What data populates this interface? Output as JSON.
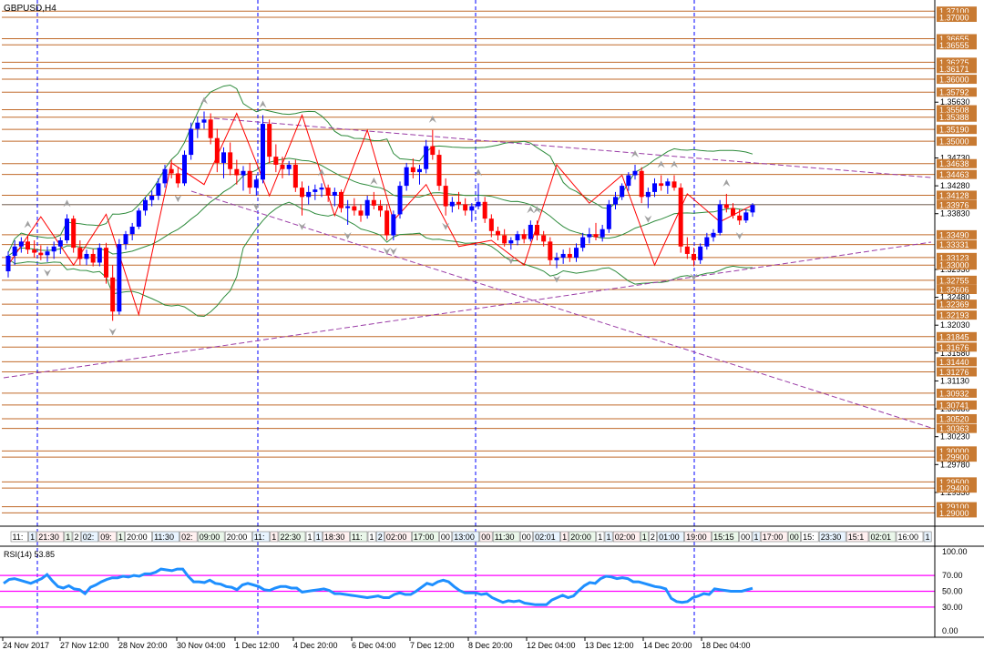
{
  "window": {
    "title": "GBPUSD,H4",
    "rsi_label": "RSI(14) 53.85"
  },
  "colors": {
    "up": "#0000ff",
    "down": "#ff0000",
    "level": "#c06a2a",
    "level_label_bg": "#c87a32",
    "grid_v": "#0000ff",
    "envelope": "#2e8b3c",
    "trend": "#9a3ca6",
    "zigzag": "#ff0000",
    "rsi": "#1e8fff",
    "rsi_level": "#ff00ff",
    "sep": "#000000"
  },
  "chart_data": {
    "type": "candlestick",
    "symbol": "GBPUSD",
    "timeframe": "H4",
    "ylim": [
      1.288,
      1.3725
    ],
    "tick_labels": [
      "1.35630",
      "1.34730",
      "1.34280",
      "1.33830",
      "1.32930",
      "1.32480",
      "1.32030",
      "1.31580",
      "1.31130",
      "1.30680",
      "1.30230",
      "1.29780",
      "1.29330"
    ],
    "levels": [
      {
        "value": 1.371,
        "label": "1.37100"
      },
      {
        "value": 1.37,
        "label": "1.37000"
      },
      {
        "value": 1.36655,
        "label": "1.36655"
      },
      {
        "value": 1.36555,
        "label": "1.36555"
      },
      {
        "value": 1.36275,
        "label": "1.36275"
      },
      {
        "value": 1.36171,
        "label": "1.36171"
      },
      {
        "value": 1.36,
        "label": "1.36000"
      },
      {
        "value": 1.35792,
        "label": "1.35792"
      },
      {
        "value": 1.35508,
        "label": "1.35508"
      },
      {
        "value": 1.35388,
        "label": "1.35388"
      },
      {
        "value": 1.3519,
        "label": "1.35190"
      },
      {
        "value": 1.35,
        "label": "1.35000"
      },
      {
        "value": 1.34638,
        "label": "1.34638"
      },
      {
        "value": 1.34463,
        "label": "1.34463"
      },
      {
        "value": 1.34128,
        "label": "1.34128"
      },
      {
        "value": 1.33976,
        "label": "1.33976"
      },
      {
        "value": 1.3349,
        "label": "1.33490"
      },
      {
        "value": 1.33331,
        "label": "1.33331"
      },
      {
        "value": 1.33123,
        "label": "1.33123"
      },
      {
        "value": 1.33,
        "label": "1.33000"
      },
      {
        "value": 1.32755,
        "label": "1.32755"
      },
      {
        "value": 1.32606,
        "label": "1.32606"
      },
      {
        "value": 1.32369,
        "label": "1.32369"
      },
      {
        "value": 1.32193,
        "label": "1.32193"
      },
      {
        "value": 1.31845,
        "label": "1.31845"
      },
      {
        "value": 1.31676,
        "label": "1.31676"
      },
      {
        "value": 1.3144,
        "label": "1.31440"
      },
      {
        "value": 1.31276,
        "label": "1.31276"
      },
      {
        "value": 1.30932,
        "label": "1.30932"
      },
      {
        "value": 1.30741,
        "label": "1.30741"
      },
      {
        "value": 1.3052,
        "label": "1.30520"
      },
      {
        "value": 1.30363,
        "label": "1.30363"
      },
      {
        "value": 1.3,
        "label": "1.30000"
      },
      {
        "value": 1.299,
        "label": "1.29900"
      },
      {
        "value": 1.295,
        "label": "1.29500"
      },
      {
        "value": 1.294,
        "label": "1.29400"
      },
      {
        "value": 1.291,
        "label": "1.29100"
      },
      {
        "value": 1.29,
        "label": "1.29000"
      }
    ],
    "current_price": 1.33976,
    "x_labels": [
      "24 Nov 2017",
      "27 Nov 12:00",
      "28 Nov 20:00",
      "30 Nov 04:00",
      "1 Dec 12:00",
      "4 Dec 20:00",
      "6 Dec 04:00",
      "7 Dec 12:00",
      "8 Dec 20:00",
      "12 Dec 04:00",
      "13 Dec 12:00",
      "14 Dec 20:00",
      "18 Dec 04:00"
    ],
    "candles": [
      {
        "o": 1.329,
        "h": 1.3322,
        "l": 1.328,
        "c": 1.3315
      },
      {
        "o": 1.3315,
        "h": 1.334,
        "l": 1.33,
        "c": 1.333
      },
      {
        "o": 1.333,
        "h": 1.3345,
        "l": 1.332,
        "c": 1.3338
      },
      {
        "o": 1.3338,
        "h": 1.3348,
        "l": 1.3318,
        "c": 1.3325
      },
      {
        "o": 1.3325,
        "h": 1.334,
        "l": 1.3312,
        "c": 1.332
      },
      {
        "o": 1.332,
        "h": 1.3332,
        "l": 1.3308,
        "c": 1.3316
      },
      {
        "o": 1.3316,
        "h": 1.333,
        "l": 1.3305,
        "c": 1.3322
      },
      {
        "o": 1.3322,
        "h": 1.3338,
        "l": 1.331,
        "c": 1.333
      },
      {
        "o": 1.333,
        "h": 1.3345,
        "l": 1.3318,
        "c": 1.334
      },
      {
        "o": 1.334,
        "h": 1.3382,
        "l": 1.3335,
        "c": 1.3375
      },
      {
        "o": 1.3375,
        "h": 1.338,
        "l": 1.332,
        "c": 1.3328
      },
      {
        "o": 1.3328,
        "h": 1.334,
        "l": 1.33,
        "c": 1.331
      },
      {
        "o": 1.331,
        "h": 1.3325,
        "l": 1.33,
        "c": 1.3318
      },
      {
        "o": 1.3318,
        "h": 1.3326,
        "l": 1.3298,
        "c": 1.3304
      },
      {
        "o": 1.3304,
        "h": 1.3335,
        "l": 1.3298,
        "c": 1.3328
      },
      {
        "o": 1.3328,
        "h": 1.3336,
        "l": 1.327,
        "c": 1.328
      },
      {
        "o": 1.328,
        "h": 1.33,
        "l": 1.321,
        "c": 1.3225
      },
      {
        "o": 1.3225,
        "h": 1.3342,
        "l": 1.322,
        "c": 1.3334
      },
      {
        "o": 1.3334,
        "h": 1.3355,
        "l": 1.3325,
        "c": 1.335
      },
      {
        "o": 1.335,
        "h": 1.3368,
        "l": 1.334,
        "c": 1.3362
      },
      {
        "o": 1.3362,
        "h": 1.3392,
        "l": 1.3358,
        "c": 1.3388
      },
      {
        "o": 1.3388,
        "h": 1.341,
        "l": 1.338,
        "c": 1.3405
      },
      {
        "o": 1.3405,
        "h": 1.342,
        "l": 1.3395,
        "c": 1.3412
      },
      {
        "o": 1.3412,
        "h": 1.344,
        "l": 1.3405,
        "c": 1.3432
      },
      {
        "o": 1.3432,
        "h": 1.3462,
        "l": 1.3425,
        "c": 1.3455
      },
      {
        "o": 1.3455,
        "h": 1.347,
        "l": 1.344,
        "c": 1.3448
      },
      {
        "o": 1.3448,
        "h": 1.3458,
        "l": 1.3425,
        "c": 1.3432
      },
      {
        "o": 1.3432,
        "h": 1.3485,
        "l": 1.3428,
        "c": 1.3478
      },
      {
        "o": 1.3478,
        "h": 1.353,
        "l": 1.347,
        "c": 1.352
      },
      {
        "o": 1.352,
        "h": 1.354,
        "l": 1.3505,
        "c": 1.353
      },
      {
        "o": 1.353,
        "h": 1.3548,
        "l": 1.352,
        "c": 1.3535
      },
      {
        "o": 1.3535,
        "h": 1.3545,
        "l": 1.3495,
        "c": 1.3505
      },
      {
        "o": 1.3505,
        "h": 1.352,
        "l": 1.345,
        "c": 1.3465
      },
      {
        "o": 1.3465,
        "h": 1.349,
        "l": 1.344,
        "c": 1.3482
      },
      {
        "o": 1.3482,
        "h": 1.3498,
        "l": 1.3445,
        "c": 1.3455
      },
      {
        "o": 1.3455,
        "h": 1.347,
        "l": 1.343,
        "c": 1.3445
      },
      {
        "o": 1.3445,
        "h": 1.346,
        "l": 1.342,
        "c": 1.3452
      },
      {
        "o": 1.3452,
        "h": 1.3465,
        "l": 1.3415,
        "c": 1.3425
      },
      {
        "o": 1.3425,
        "h": 1.3445,
        "l": 1.3412,
        "c": 1.3438
      },
      {
        "o": 1.3438,
        "h": 1.3542,
        "l": 1.3432,
        "c": 1.3528
      },
      {
        "o": 1.3528,
        "h": 1.3535,
        "l": 1.3465,
        "c": 1.3475
      },
      {
        "o": 1.3475,
        "h": 1.3495,
        "l": 1.345,
        "c": 1.3462
      },
      {
        "o": 1.3462,
        "h": 1.3475,
        "l": 1.344,
        "c": 1.3455
      },
      {
        "o": 1.3455,
        "h": 1.3468,
        "l": 1.3445,
        "c": 1.3462
      },
      {
        "o": 1.3462,
        "h": 1.347,
        "l": 1.3418,
        "c": 1.3425
      },
      {
        "o": 1.3425,
        "h": 1.3435,
        "l": 1.338,
        "c": 1.341
      },
      {
        "o": 1.341,
        "h": 1.3428,
        "l": 1.3398,
        "c": 1.3418
      },
      {
        "o": 1.3418,
        "h": 1.343,
        "l": 1.3405,
        "c": 1.3422
      },
      {
        "o": 1.3422,
        "h": 1.3432,
        "l": 1.341,
        "c": 1.3425
      },
      {
        "o": 1.3425,
        "h": 1.343,
        "l": 1.3402,
        "c": 1.3412
      },
      {
        "o": 1.3412,
        "h": 1.3425,
        "l": 1.3395,
        "c": 1.3418
      },
      {
        "o": 1.3418,
        "h": 1.3422,
        "l": 1.3385,
        "c": 1.3392
      },
      {
        "o": 1.3392,
        "h": 1.3405,
        "l": 1.3365,
        "c": 1.3395
      },
      {
        "o": 1.3395,
        "h": 1.3408,
        "l": 1.338,
        "c": 1.3388
      },
      {
        "o": 1.3388,
        "h": 1.3398,
        "l": 1.337,
        "c": 1.338
      },
      {
        "o": 1.338,
        "h": 1.3412,
        "l": 1.3375,
        "c": 1.3405
      },
      {
        "o": 1.3405,
        "h": 1.3418,
        "l": 1.339,
        "c": 1.3396
      },
      {
        "o": 1.3396,
        "h": 1.3405,
        "l": 1.3378,
        "c": 1.3388
      },
      {
        "o": 1.3388,
        "h": 1.3398,
        "l": 1.334,
        "c": 1.3348
      },
      {
        "o": 1.3348,
        "h": 1.3388,
        "l": 1.334,
        "c": 1.3382
      },
      {
        "o": 1.3382,
        "h": 1.3435,
        "l": 1.3375,
        "c": 1.3428
      },
      {
        "o": 1.3428,
        "h": 1.3465,
        "l": 1.342,
        "c": 1.3458
      },
      {
        "o": 1.3458,
        "h": 1.3472,
        "l": 1.344,
        "c": 1.345
      },
      {
        "o": 1.345,
        "h": 1.3462,
        "l": 1.343,
        "c": 1.3455
      },
      {
        "o": 1.3455,
        "h": 1.3502,
        "l": 1.3448,
        "c": 1.3492
      },
      {
        "o": 1.3492,
        "h": 1.3518,
        "l": 1.347,
        "c": 1.3478
      },
      {
        "o": 1.3478,
        "h": 1.3486,
        "l": 1.342,
        "c": 1.3428
      },
      {
        "o": 1.3428,
        "h": 1.344,
        "l": 1.338,
        "c": 1.3395
      },
      {
        "o": 1.3395,
        "h": 1.341,
        "l": 1.3385,
        "c": 1.3402
      },
      {
        "o": 1.3402,
        "h": 1.3418,
        "l": 1.339,
        "c": 1.3398
      },
      {
        "o": 1.3398,
        "h": 1.3408,
        "l": 1.338,
        "c": 1.3388
      },
      {
        "o": 1.3388,
        "h": 1.34,
        "l": 1.337,
        "c": 1.3395
      },
      {
        "o": 1.3395,
        "h": 1.3432,
        "l": 1.339,
        "c": 1.3402
      },
      {
        "o": 1.3402,
        "h": 1.341,
        "l": 1.3368,
        "c": 1.3375
      },
      {
        "o": 1.3375,
        "h": 1.3382,
        "l": 1.3345,
        "c": 1.3355
      },
      {
        "o": 1.3355,
        "h": 1.3362,
        "l": 1.334,
        "c": 1.3348
      },
      {
        "o": 1.3348,
        "h": 1.3358,
        "l": 1.333,
        "c": 1.3335
      },
      {
        "o": 1.3335,
        "h": 1.3345,
        "l": 1.3325,
        "c": 1.334
      },
      {
        "o": 1.334,
        "h": 1.3355,
        "l": 1.3332,
        "c": 1.335
      },
      {
        "o": 1.335,
        "h": 1.3358,
        "l": 1.3335,
        "c": 1.3342
      },
      {
        "o": 1.3342,
        "h": 1.3372,
        "l": 1.3338,
        "c": 1.3365
      },
      {
        "o": 1.3365,
        "h": 1.3372,
        "l": 1.334,
        "c": 1.3348
      },
      {
        "o": 1.3348,
        "h": 1.3355,
        "l": 1.333,
        "c": 1.3338
      },
      {
        "o": 1.3338,
        "h": 1.3345,
        "l": 1.33,
        "c": 1.3308
      },
      {
        "o": 1.3308,
        "h": 1.332,
        "l": 1.3295,
        "c": 1.3312
      },
      {
        "o": 1.3312,
        "h": 1.3325,
        "l": 1.3302,
        "c": 1.3318
      },
      {
        "o": 1.3318,
        "h": 1.3328,
        "l": 1.3305,
        "c": 1.3312
      },
      {
        "o": 1.3312,
        "h": 1.3335,
        "l": 1.3305,
        "c": 1.3328
      },
      {
        "o": 1.3328,
        "h": 1.3352,
        "l": 1.3322,
        "c": 1.3345
      },
      {
        "o": 1.3345,
        "h": 1.336,
        "l": 1.3335,
        "c": 1.335
      },
      {
        "o": 1.335,
        "h": 1.3368,
        "l": 1.334,
        "c": 1.3345
      },
      {
        "o": 1.3345,
        "h": 1.3365,
        "l": 1.3338,
        "c": 1.3358
      },
      {
        "o": 1.3358,
        "h": 1.3405,
        "l": 1.3352,
        "c": 1.3398
      },
      {
        "o": 1.3398,
        "h": 1.3418,
        "l": 1.339,
        "c": 1.341
      },
      {
        "o": 1.341,
        "h": 1.3432,
        "l": 1.3405,
        "c": 1.3428
      },
      {
        "o": 1.3428,
        "h": 1.345,
        "l": 1.342,
        "c": 1.3445
      },
      {
        "o": 1.3445,
        "h": 1.3462,
        "l": 1.3438,
        "c": 1.3452
      },
      {
        "o": 1.3452,
        "h": 1.3458,
        "l": 1.34,
        "c": 1.341
      },
      {
        "o": 1.341,
        "h": 1.3425,
        "l": 1.3392,
        "c": 1.3418
      },
      {
        "o": 1.3418,
        "h": 1.344,
        "l": 1.341,
        "c": 1.3432
      },
      {
        "o": 1.3432,
        "h": 1.3445,
        "l": 1.342,
        "c": 1.3428
      },
      {
        "o": 1.3428,
        "h": 1.344,
        "l": 1.3415,
        "c": 1.3435
      },
      {
        "o": 1.3435,
        "h": 1.3445,
        "l": 1.342,
        "c": 1.3425
      },
      {
        "o": 1.3425,
        "h": 1.3432,
        "l": 1.332,
        "c": 1.333
      },
      {
        "o": 1.333,
        "h": 1.3345,
        "l": 1.331,
        "c": 1.3318
      },
      {
        "o": 1.3318,
        "h": 1.3328,
        "l": 1.3298,
        "c": 1.3308
      },
      {
        "o": 1.3308,
        "h": 1.3335,
        "l": 1.3302,
        "c": 1.333
      },
      {
        "o": 1.333,
        "h": 1.3352,
        "l": 1.3325,
        "c": 1.3345
      },
      {
        "o": 1.3345,
        "h": 1.3358,
        "l": 1.3338,
        "c": 1.3352
      },
      {
        "o": 1.3352,
        "h": 1.3405,
        "l": 1.3348,
        "c": 1.3398
      },
      {
        "o": 1.3398,
        "h": 1.3415,
        "l": 1.3385,
        "c": 1.3392
      },
      {
        "o": 1.3392,
        "h": 1.34,
        "l": 1.3375,
        "c": 1.338
      },
      {
        "o": 1.338,
        "h": 1.339,
        "l": 1.3365,
        "c": 1.3372
      },
      {
        "o": 1.3372,
        "h": 1.339,
        "l": 1.3368,
        "c": 1.3385
      },
      {
        "o": 1.3385,
        "h": 1.34,
        "l": 1.3378,
        "c": 1.3397
      }
    ],
    "zigzag_prices": [
      1.33,
      1.3378,
      1.33,
      1.3382,
      1.322,
      1.3465,
      1.343,
      1.3545,
      1.3412,
      1.3542,
      1.338,
      1.3518,
      1.3372,
      1.343,
      1.333,
      1.334,
      1.33,
      1.3462,
      1.34,
      1.3445,
      1.33,
      1.3415,
      1.337,
      1.3397
    ],
    "rsi_ylim": [
      0,
      100
    ],
    "rsi_ticks": [
      "100.00",
      "70.00",
      "50.00",
      "30.00",
      "0.00"
    ],
    "rsi_levels": [
      70,
      50,
      30
    ],
    "rsi_values": [
      60,
      65,
      66,
      64,
      62,
      60,
      63,
      66,
      71,
      63,
      56,
      54,
      57,
      53,
      52,
      47,
      55,
      58,
      62,
      65,
      67,
      67,
      69,
      68,
      70,
      69,
      72,
      72,
      74,
      78,
      77,
      76,
      78,
      78,
      69,
      62,
      62,
      61,
      64,
      60,
      59,
      56,
      55,
      52,
      58,
      60,
      58,
      56,
      52,
      51,
      54,
      56,
      56,
      54,
      54,
      49,
      50,
      51,
      52,
      53,
      51,
      47,
      47,
      46,
      45,
      44,
      43,
      42,
      43,
      44,
      42,
      42,
      46,
      48,
      46,
      46,
      50,
      55,
      60,
      58,
      62,
      64,
      62,
      56,
      51,
      48,
      48,
      48,
      46,
      47,
      42,
      39,
      36,
      38,
      37,
      38,
      35,
      34,
      33,
      33,
      33,
      39,
      42,
      45,
      42,
      44,
      51,
      57,
      61,
      60,
      66,
      69,
      68,
      66,
      67,
      66,
      62,
      62,
      60,
      58,
      56,
      55,
      53,
      41,
      37,
      36,
      37,
      42,
      44,
      47,
      46,
      53,
      52,
      51,
      50,
      50,
      50,
      52,
      53.85
    ]
  },
  "time_bar": {
    "labels": [
      "11:",
      "1",
      "21:30",
      "1",
      "2",
      "02:",
      "09:",
      "1",
      "20:00",
      "11:30",
      "02:",
      "09:00",
      "20:00",
      "11:",
      "1",
      "22:30",
      "1",
      "1",
      "18:30",
      "11:",
      "1",
      "2",
      "02:00",
      "17:00",
      "00",
      "13:00",
      "00",
      "11:30",
      "00",
      "02:01",
      "1",
      "20:00",
      "1",
      "1",
      "02:00",
      "1",
      "2",
      "01:00",
      "19:00",
      "15:15",
      "00",
      "1",
      "17:00",
      "00",
      "15:",
      "23:30",
      "15:1",
      "02:01",
      "16:00",
      "1",
      "22:30"
    ]
  }
}
